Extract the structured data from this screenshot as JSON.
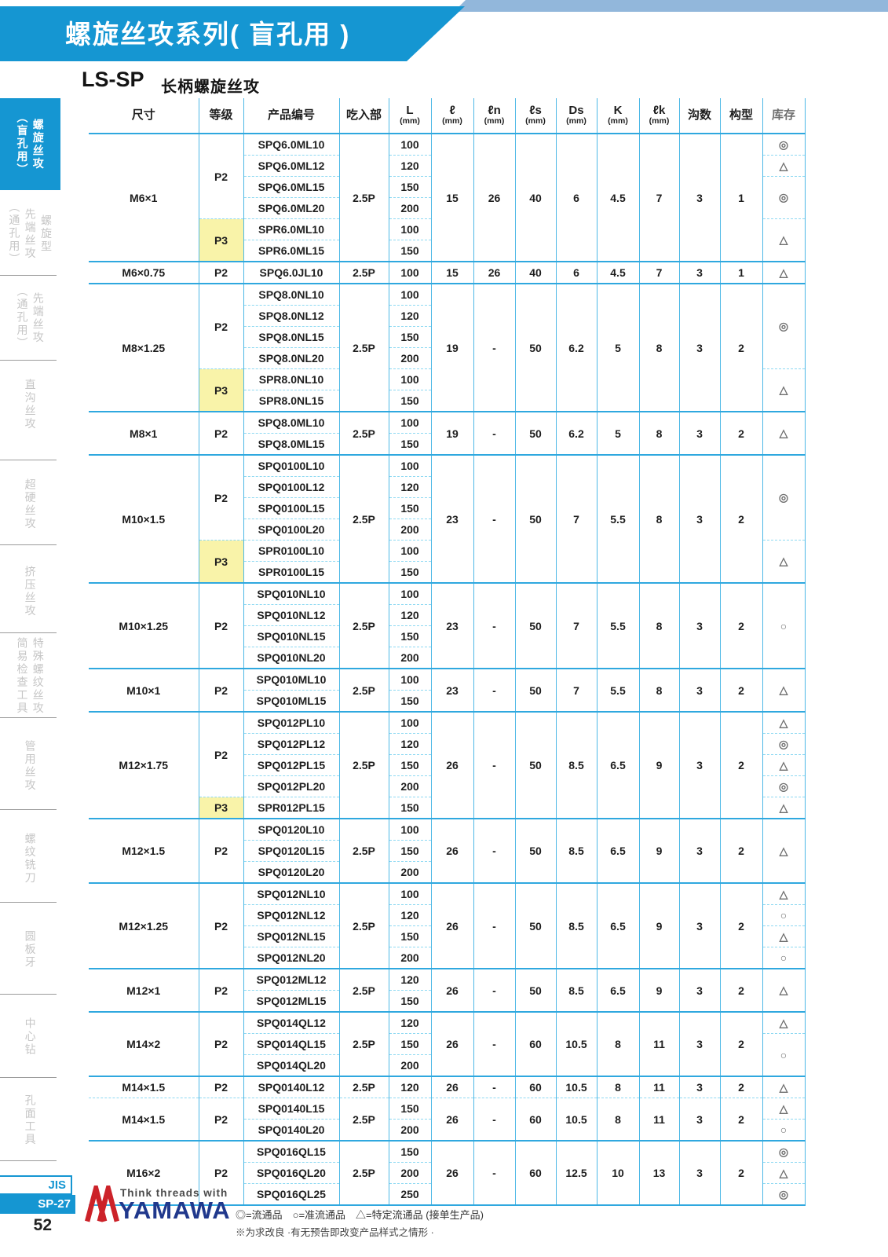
{
  "banner": {
    "title": "螺旋丝攻系列( 盲孔用 )"
  },
  "subtitle": {
    "code": "LS-SP",
    "text": "长柄螺旋丝攻"
  },
  "colors": {
    "accent_blue": "#1596d2",
    "table_line_blue": "#2fa8df",
    "table_dash_blue": "#8ed9f2",
    "highlight_yellow": "#f9f3a9",
    "brand_navy": "#20388c",
    "brand_red": "#cc2229",
    "top_band_blue": "#92b7db"
  },
  "sidebar": {
    "items": [
      {
        "label": "螺旋丝攻\n（盲孔用）",
        "active": true
      },
      {
        "label": "螺旋型\n先端丝攻\n（通孔用）",
        "active": false
      },
      {
        "label": "先端丝攻\n（通孔用）",
        "active": false
      },
      {
        "label": "直沟丝攻",
        "active": false
      },
      {
        "label": "超硬丝攻",
        "active": false
      },
      {
        "label": "挤压丝攻",
        "active": false
      },
      {
        "label": "特殊螺纹丝攻\n简易检查工具",
        "active": false
      },
      {
        "label": "管用丝攻",
        "active": false
      },
      {
        "label": "螺纹铣刀",
        "active": false
      },
      {
        "label": "圆板牙",
        "active": false
      },
      {
        "label": "中心钻",
        "active": false
      },
      {
        "label": "孔面工具",
        "active": false
      }
    ],
    "footer": {
      "jis": "JIS",
      "sp": "SP-27",
      "page": "52"
    }
  },
  "table": {
    "headers": [
      {
        "label": "尺寸"
      },
      {
        "label": "等级"
      },
      {
        "label": "产品编号"
      },
      {
        "label": "吃入部"
      },
      {
        "label": "L",
        "unit": "(mm)"
      },
      {
        "label": "ℓ",
        "unit": "(mm)"
      },
      {
        "label": "ℓn",
        "unit": "(mm)"
      },
      {
        "label": "ℓs",
        "unit": "(mm)"
      },
      {
        "label": "Ds",
        "unit": "(mm)"
      },
      {
        "label": "K",
        "unit": "(mm)"
      },
      {
        "label": "ℓk",
        "unit": "(mm)"
      },
      {
        "label": "沟数"
      },
      {
        "label": "构型"
      },
      {
        "label": "库存"
      }
    ],
    "groups": [
      {
        "size": "M6×1",
        "eat": "2.5P",
        "l": "15",
        "ln": "26",
        "ls": "40",
        "ds": "6",
        "k": "4.5",
        "lk": "7",
        "grooves": "3",
        "form": "1",
        "grades": [
          {
            "grade": "P2",
            "yellow": false,
            "products": [
              {
                "code": "SPQ6.0ML10",
                "L": "100"
              },
              {
                "code": "SPQ6.0ML12",
                "L": "120"
              },
              {
                "code": "SPQ6.0ML15",
                "L": "150"
              },
              {
                "code": "SPQ6.0ML20",
                "L": "200"
              }
            ]
          },
          {
            "grade": "P3",
            "yellow": true,
            "products": [
              {
                "code": "SPR6.0ML10",
                "L": "100"
              },
              {
                "code": "SPR6.0ML15",
                "L": "150"
              }
            ]
          }
        ],
        "stock": [
          {
            "sym": "◎",
            "span": 1
          },
          {
            "sym": "△",
            "span": 1
          },
          {
            "sym": "◎",
            "span": 2
          },
          {
            "sym": "△",
            "span": 2
          }
        ]
      },
      {
        "size": "M6×0.75",
        "eat": "2.5P",
        "l": "15",
        "ln": "26",
        "ls": "40",
        "ds": "6",
        "k": "4.5",
        "lk": "7",
        "grooves": "3",
        "form": "1",
        "grades": [
          {
            "grade": "P2",
            "yellow": false,
            "products": [
              {
                "code": "SPQ6.0JL10",
                "L": "100"
              }
            ]
          }
        ],
        "stock": [
          {
            "sym": "△",
            "span": 1
          }
        ]
      },
      {
        "size": "M8×1.25",
        "eat": "2.5P",
        "l": "19",
        "ln": "-",
        "ls": "50",
        "ds": "6.2",
        "k": "5",
        "lk": "8",
        "grooves": "3",
        "form": "2",
        "grades": [
          {
            "grade": "P2",
            "yellow": false,
            "products": [
              {
                "code": "SPQ8.0NL10",
                "L": "100"
              },
              {
                "code": "SPQ8.0NL12",
                "L": "120"
              },
              {
                "code": "SPQ8.0NL15",
                "L": "150"
              },
              {
                "code": "SPQ8.0NL20",
                "L": "200"
              }
            ]
          },
          {
            "grade": "P3",
            "yellow": true,
            "products": [
              {
                "code": "SPR8.0NL10",
                "L": "100"
              },
              {
                "code": "SPR8.0NL15",
                "L": "150"
              }
            ]
          }
        ],
        "stock": [
          {
            "sym": "◎",
            "span": 4
          },
          {
            "sym": "△",
            "span": 2
          }
        ]
      },
      {
        "size": "M8×1",
        "eat": "2.5P",
        "l": "19",
        "ln": "-",
        "ls": "50",
        "ds": "6.2",
        "k": "5",
        "lk": "8",
        "grooves": "3",
        "form": "2",
        "grades": [
          {
            "grade": "P2",
            "yellow": false,
            "products": [
              {
                "code": "SPQ8.0ML10",
                "L": "100"
              },
              {
                "code": "SPQ8.0ML15",
                "L": "150"
              }
            ]
          }
        ],
        "stock": [
          {
            "sym": "△",
            "span": 2
          }
        ]
      },
      {
        "size": "M10×1.5",
        "eat": "2.5P",
        "l": "23",
        "ln": "-",
        "ls": "50",
        "ds": "7",
        "k": "5.5",
        "lk": "8",
        "grooves": "3",
        "form": "2",
        "grades": [
          {
            "grade": "P2",
            "yellow": false,
            "products": [
              {
                "code": "SPQ0100L10",
                "L": "100"
              },
              {
                "code": "SPQ0100L12",
                "L": "120"
              },
              {
                "code": "SPQ0100L15",
                "L": "150"
              },
              {
                "code": "SPQ0100L20",
                "L": "200"
              }
            ]
          },
          {
            "grade": "P3",
            "yellow": true,
            "products": [
              {
                "code": "SPR0100L10",
                "L": "100"
              },
              {
                "code": "SPR0100L15",
                "L": "150"
              }
            ]
          }
        ],
        "stock": [
          {
            "sym": "◎",
            "span": 4
          },
          {
            "sym": "△",
            "span": 2
          }
        ]
      },
      {
        "size": "M10×1.25",
        "eat": "2.5P",
        "l": "23",
        "ln": "-",
        "ls": "50",
        "ds": "7",
        "k": "5.5",
        "lk": "8",
        "grooves": "3",
        "form": "2",
        "grades": [
          {
            "grade": "P2",
            "yellow": false,
            "products": [
              {
                "code": "SPQ010NL10",
                "L": "100"
              },
              {
                "code": "SPQ010NL12",
                "L": "120"
              },
              {
                "code": "SPQ010NL15",
                "L": "150"
              },
              {
                "code": "SPQ010NL20",
                "L": "200"
              }
            ]
          }
        ],
        "stock": [
          {
            "sym": "○",
            "span": 4
          }
        ]
      },
      {
        "size": "M10×1",
        "eat": "2.5P",
        "l": "23",
        "ln": "-",
        "ls": "50",
        "ds": "7",
        "k": "5.5",
        "lk": "8",
        "grooves": "3",
        "form": "2",
        "grades": [
          {
            "grade": "P2",
            "yellow": false,
            "products": [
              {
                "code": "SPQ010ML10",
                "L": "100"
              },
              {
                "code": "SPQ010ML15",
                "L": "150"
              }
            ]
          }
        ],
        "stock": [
          {
            "sym": "△",
            "span": 2
          }
        ]
      },
      {
        "size": "M12×1.75",
        "eat": "2.5P",
        "l": "26",
        "ln": "-",
        "ls": "50",
        "ds": "8.5",
        "k": "6.5",
        "lk": "9",
        "grooves": "3",
        "form": "2",
        "grades": [
          {
            "grade": "P2",
            "yellow": false,
            "products": [
              {
                "code": "SPQ012PL10",
                "L": "100"
              },
              {
                "code": "SPQ012PL12",
                "L": "120"
              },
              {
                "code": "SPQ012PL15",
                "L": "150"
              },
              {
                "code": "SPQ012PL20",
                "L": "200"
              }
            ]
          },
          {
            "grade": "P3",
            "yellow": true,
            "products": [
              {
                "code": "SPR012PL15",
                "L": "150"
              }
            ]
          }
        ],
        "stock": [
          {
            "sym": "△",
            "span": 1
          },
          {
            "sym": "◎",
            "span": 1
          },
          {
            "sym": "△",
            "span": 1
          },
          {
            "sym": "◎",
            "span": 1
          },
          {
            "sym": "△",
            "span": 1
          }
        ]
      },
      {
        "size": "M12×1.5",
        "eat": "2.5P",
        "l": "26",
        "ln": "-",
        "ls": "50",
        "ds": "8.5",
        "k": "6.5",
        "lk": "9",
        "grooves": "3",
        "form": "2",
        "grades": [
          {
            "grade": "P2",
            "yellow": false,
            "products": [
              {
                "code": "SPQ0120L10",
                "L": "100"
              },
              {
                "code": "SPQ0120L15",
                "L": "150"
              },
              {
                "code": "SPQ0120L20",
                "L": "200"
              }
            ]
          }
        ],
        "stock": [
          {
            "sym": "△",
            "span": 3
          }
        ]
      },
      {
        "size": "M12×1.25",
        "eat": "2.5P",
        "l": "26",
        "ln": "-",
        "ls": "50",
        "ds": "8.5",
        "k": "6.5",
        "lk": "9",
        "grooves": "3",
        "form": "2",
        "grades": [
          {
            "grade": "P2",
            "yellow": false,
            "products": [
              {
                "code": "SPQ012NL10",
                "L": "100"
              },
              {
                "code": "SPQ012NL12",
                "L": "120"
              },
              {
                "code": "SPQ012NL15",
                "L": "150"
              },
              {
                "code": "SPQ012NL20",
                "L": "200"
              }
            ]
          }
        ],
        "stock": [
          {
            "sym": "△",
            "span": 1
          },
          {
            "sym": "○",
            "span": 1
          },
          {
            "sym": "△",
            "span": 1
          },
          {
            "sym": "○",
            "span": 1
          }
        ]
      },
      {
        "size": "M12×1",
        "eat": "2.5P",
        "l": "26",
        "ln": "-",
        "ls": "50",
        "ds": "8.5",
        "k": "6.5",
        "lk": "9",
        "grooves": "3",
        "form": "2",
        "grades": [
          {
            "grade": "P2",
            "yellow": false,
            "products": [
              {
                "code": "SPQ012ML12",
                "L": "120"
              },
              {
                "code": "SPQ012ML15",
                "L": "150"
              }
            ]
          }
        ],
        "stock": [
          {
            "sym": "△",
            "span": 2
          }
        ]
      },
      {
        "size": "M14×2",
        "eat": "2.5P",
        "l": "26",
        "ln": "-",
        "ls": "60",
        "ds": "10.5",
        "k": "8",
        "lk": "11",
        "grooves": "3",
        "form": "2",
        "grades": [
          {
            "grade": "P2",
            "yellow": false,
            "products": [
              {
                "code": "SPQ014QL12",
                "L": "120"
              },
              {
                "code": "SPQ014QL15",
                "L": "150"
              },
              {
                "code": "SPQ014QL20",
                "L": "200"
              }
            ]
          }
        ],
        "stock": [
          {
            "sym": "△",
            "span": 1
          },
          {
            "sym": "○",
            "span": 2
          }
        ]
      },
      {
        "size": "M14×1.5",
        "eat": "2.5P",
        "l": "26",
        "ln": "-",
        "ls": "60",
        "ds": "10.5",
        "k": "8",
        "lk": "11",
        "grooves": "3",
        "form": "2",
        "grades": [
          {
            "grade": "P2",
            "yellow": false,
            "products": [
              {
                "code": "SPQ0140L12",
                "L": "120"
              }
            ]
          }
        ],
        "stock": [
          {
            "sym": "△",
            "span": 1
          }
        ]
      },
      {
        "size": "M14×1.5",
        "divider": "dashed",
        "eat": "2.5P",
        "l": "26",
        "ln": "-",
        "ls": "60",
        "ds": "10.5",
        "k": "8",
        "lk": "11",
        "grooves": "3",
        "form": "2",
        "grades": [
          {
            "grade": "P2",
            "yellow": false,
            "products": [
              {
                "code": "SPQ0140L15",
                "L": "150"
              },
              {
                "code": "SPQ0140L20",
                "L": "200"
              }
            ]
          }
        ],
        "stock": [
          {
            "sym": "△",
            "span": 1
          },
          {
            "sym": "○",
            "span": 1
          }
        ]
      },
      {
        "size": "M16×2",
        "eat": "2.5P",
        "l": "26",
        "ln": "-",
        "ls": "60",
        "ds": "12.5",
        "k": "10",
        "lk": "13",
        "grooves": "3",
        "form": "2",
        "grades": [
          {
            "grade": "P2",
            "yellow": false,
            "products": [
              {
                "code": "SPQ016QL15",
                "L": "150"
              },
              {
                "code": "SPQ016QL20",
                "L": "200"
              },
              {
                "code": "SPQ016QL25",
                "L": "250"
              }
            ]
          }
        ],
        "stock": [
          {
            "sym": "◎",
            "span": 1
          },
          {
            "sym": "△",
            "span": 1
          },
          {
            "sym": "◎",
            "span": 1
          }
        ]
      }
    ]
  },
  "footer": {
    "brand_tagline": "Think threads with",
    "brand_name": "YAMAWA",
    "legend": "◎=流通品　○=准流通品　△=特定流通品 (接单生产品)",
    "note": "※为求改良 ·有无预告即改变产品样式之情形 ·"
  }
}
